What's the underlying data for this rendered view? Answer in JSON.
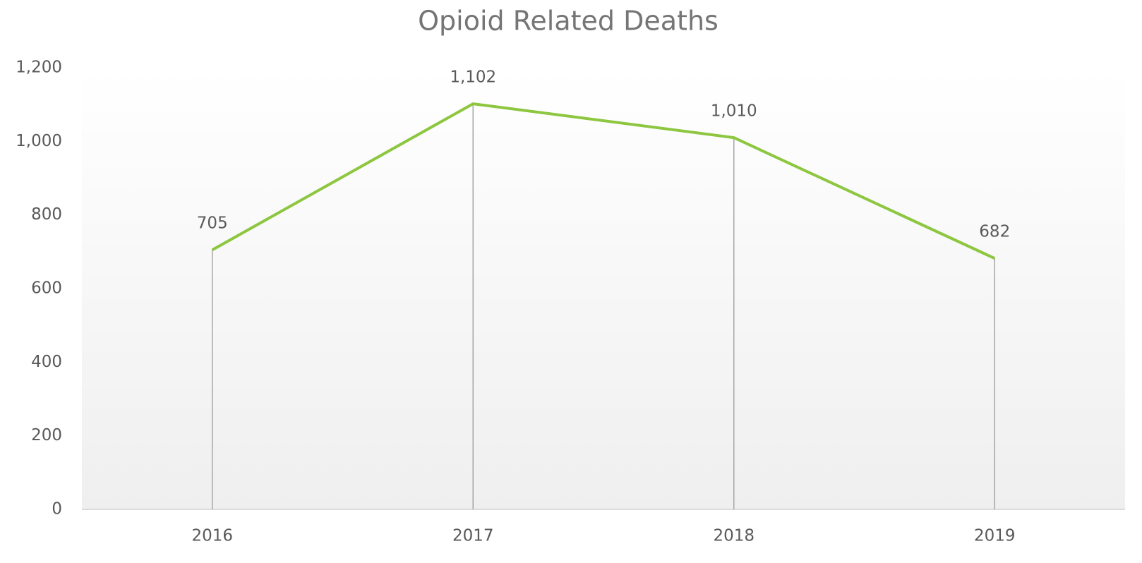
{
  "chart_data": {
    "type": "line",
    "title": "Opioid Related Deaths",
    "categories": [
      "2016",
      "2017",
      "2018",
      "2019"
    ],
    "series": [
      {
        "name": "Opioid Related Deaths",
        "color": "#8dc63f",
        "values": [
          705,
          1102,
          1010,
          682
        ],
        "value_labels": [
          "705",
          "1,102",
          "1,010",
          "682"
        ]
      }
    ],
    "ylim": [
      0,
      1200
    ],
    "yticks": [
      0,
      200,
      400,
      600,
      800,
      {
        "value": 1000,
        "label": "1,000"
      },
      {
        "value": 1200,
        "label": "1,200"
      }
    ],
    "drop_lines": true
  }
}
